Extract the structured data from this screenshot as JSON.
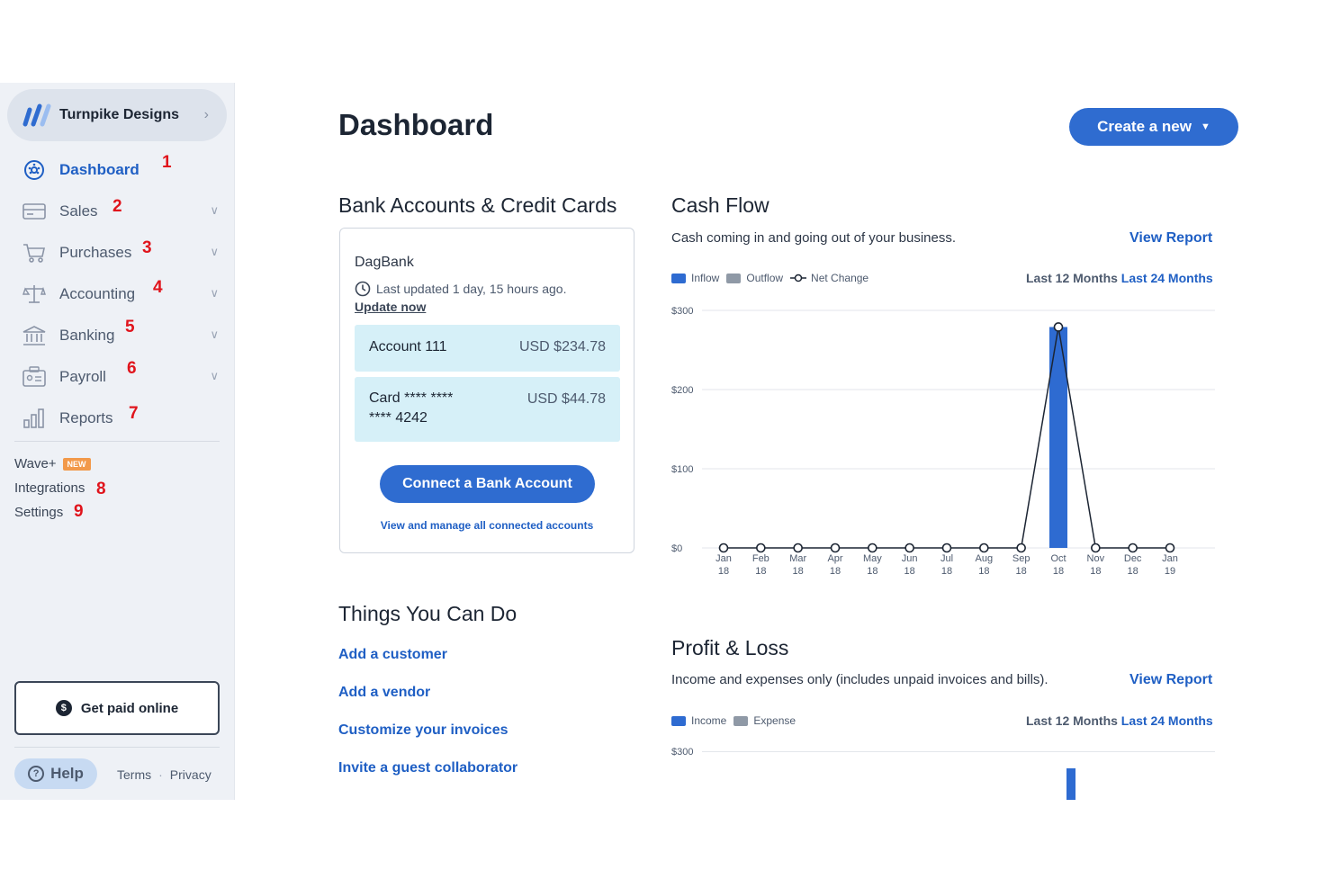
{
  "sidebar": {
    "business_name": "Turnpike Designs",
    "items": [
      {
        "label": "Dashboard",
        "icon": "dashboard-icon",
        "num": "1",
        "active": true
      },
      {
        "label": "Sales",
        "icon": "sales-icon",
        "num": "2"
      },
      {
        "label": "Purchases",
        "icon": "cart-icon",
        "num": "3"
      },
      {
        "label": "Accounting",
        "icon": "scale-icon",
        "num": "4"
      },
      {
        "label": "Banking",
        "icon": "bank-icon",
        "num": "5"
      },
      {
        "label": "Payroll",
        "icon": "payroll-icon",
        "num": "6"
      },
      {
        "label": "Reports",
        "icon": "bar-chart-icon",
        "num": "7"
      }
    ],
    "wave_plus": "Wave+",
    "new_badge": "NEW",
    "integrations": "Integrations",
    "integrations_num": "8",
    "settings": "Settings",
    "settings_num": "9",
    "get_paid": "Get paid online",
    "help": "Help",
    "terms": "Terms",
    "privacy": "Privacy"
  },
  "header": {
    "title": "Dashboard",
    "create_button": "Create a new"
  },
  "bank": {
    "heading": "Bank Accounts & Credit Cards",
    "bank_name": "DagBank",
    "last_updated": "Last updated 1 day, 15 hours ago.",
    "update_now": "Update now",
    "accounts": [
      {
        "name": "Account 111",
        "value": "USD $234.78"
      },
      {
        "name_line1": "Card **** ****",
        "name_line2": "**** 4242",
        "value": "USD $44.78"
      }
    ],
    "connect_button": "Connect a Bank Account",
    "manage_link": "View and manage all connected accounts"
  },
  "things": {
    "heading": "Things You Can Do",
    "links": [
      "Add a customer",
      "Add a vendor",
      "Customize your invoices",
      "Invite a guest collaborator"
    ]
  },
  "cashflow": {
    "heading": "Cash Flow",
    "subtitle": "Cash coming in and going out of your business.",
    "view_report": "View Report",
    "legend": [
      "Inflow",
      "Outflow",
      "Net Change"
    ],
    "range_12": "Last 12 Months",
    "range_24": "Last 24 Months"
  },
  "pnl": {
    "heading": "Profit & Loss",
    "subtitle": "Income and expenses only (includes unpaid invoices and bills).",
    "view_report": "View Report",
    "legend": [
      "Income",
      "Expense"
    ],
    "range_12": "Last 12 Months",
    "range_24": "Last 24 Months",
    "y_tick": "$300"
  },
  "colors": {
    "accent": "#2f6cd0",
    "inflow": "#2e6bd1",
    "outflow": "#8f99a6",
    "annotation_red": "#e0141c"
  },
  "chart_data": {
    "type": "bar",
    "categories": [
      "Jan 18",
      "Feb 18",
      "Mar 18",
      "Apr 18",
      "May 18",
      "Jun 18",
      "Jul 18",
      "Aug 18",
      "Sep 18",
      "Oct 18",
      "Nov 18",
      "Dec 18",
      "Jan 19"
    ],
    "series": [
      {
        "name": "Inflow",
        "values": [
          0,
          0,
          0,
          0,
          0,
          0,
          0,
          0,
          0,
          279,
          0,
          0,
          0
        ]
      },
      {
        "name": "Outflow",
        "values": [
          0,
          0,
          0,
          0,
          0,
          0,
          0,
          0,
          0,
          0,
          0,
          0,
          0
        ]
      },
      {
        "name": "Net Change",
        "values": [
          0,
          0,
          0,
          0,
          0,
          0,
          0,
          0,
          0,
          279,
          0,
          0,
          0
        ]
      }
    ],
    "y_ticks": [
      "$0",
      "$100",
      "$200",
      "$300"
    ],
    "ylim": [
      0,
      300
    ],
    "grid": true,
    "legend": "top-left"
  }
}
